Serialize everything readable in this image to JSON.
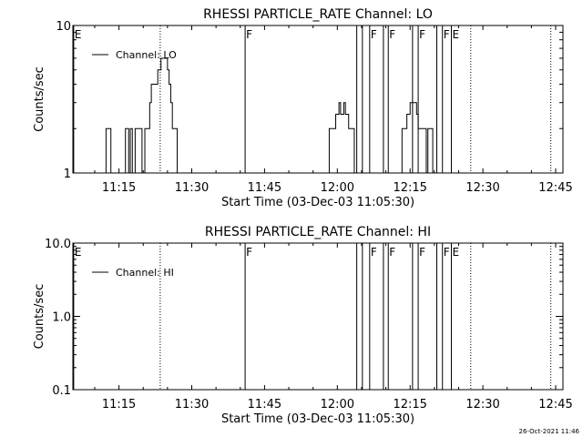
{
  "chart_data": [
    {
      "type": "line",
      "title": "RHESSI PARTICLE_RATE Channel: LO",
      "xlabel": "Start Time (03-Dec-03 11:05:30)",
      "ylabel": "Counts/sec",
      "y_scale": "log",
      "xlim": [
        "11:05:30",
        "12:46:30"
      ],
      "ylim": [
        1,
        10
      ],
      "x_ticks": [
        "11:15",
        "11:30",
        "11:45",
        "12:00",
        "12:15",
        "12:30",
        "12:45"
      ],
      "y_ticks": [
        "1",
        "10"
      ],
      "legend": {
        "position": "top-left",
        "entries": [
          "Channel: LO"
        ]
      },
      "series": [
        {
          "name": "Channel: LO",
          "x": [
            "11:12:00",
            "11:12:20",
            "11:12:30",
            "11:12:45",
            "11:13:00",
            "11:13:20",
            "11:16:00",
            "11:16:20",
            "11:16:30",
            "11:16:45",
            "11:17:00",
            "11:17:20",
            "11:17:30",
            "11:17:45",
            "11:18:00",
            "11:18:20",
            "11:19:00",
            "11:19:20",
            "11:19:30",
            "11:19:45",
            "11:20:00",
            "11:20:20",
            "11:21:00",
            "11:21:20",
            "11:21:40",
            "11:22:00",
            "11:22:30",
            "11:23:00",
            "11:23:20",
            "11:23:40",
            "11:24:00",
            "11:24:30",
            "11:25:00",
            "11:25:20",
            "11:25:40",
            "11:26:00",
            "11:26:30",
            "11:27:00",
            "11:27:20",
            "11:27:40",
            "11:28:00",
            "11:28:30",
            "11:29:00",
            "11:58:00",
            "11:58:20",
            "11:58:40",
            "11:59:00",
            "11:59:20",
            "11:59:40",
            "12:00:00",
            "12:00:20",
            "12:00:40",
            "12:01:00",
            "12:01:20",
            "12:01:40",
            "12:02:00",
            "12:02:20",
            "12:02:40",
            "12:03:00",
            "12:03:30",
            "12:04:00",
            "12:13:00",
            "12:13:20",
            "12:13:40",
            "12:14:00",
            "12:14:20",
            "12:14:40",
            "12:15:00",
            "12:15:30",
            "12:16:00",
            "12:16:20",
            "12:16:40",
            "12:17:00",
            "12:17:30",
            "12:18:00",
            "12:18:20",
            "12:18:40",
            "12:19:00",
            "12:19:20",
            "12:19:40"
          ],
          "y": [
            1,
            2,
            2,
            2,
            2,
            1,
            1,
            2,
            2,
            2,
            1,
            2,
            2,
            1,
            1,
            2,
            2,
            2,
            2,
            1,
            1,
            2,
            2,
            3,
            4,
            4,
            4,
            5,
            5,
            6,
            6,
            6,
            5,
            4,
            3,
            2,
            2,
            1,
            1,
            1,
            1,
            1,
            1,
            1,
            2,
            2,
            2,
            2,
            2.5,
            2.5,
            3,
            2.5,
            2.5,
            3,
            2.5,
            2.5,
            2,
            2,
            2,
            1,
            1,
            1,
            2,
            2,
            2,
            2.5,
            2.5,
            3,
            3,
            3,
            2.5,
            2,
            2,
            2,
            2,
            1,
            2,
            2,
            2,
            1
          ]
        }
      ],
      "vertical_lines": {
        "dotted": [
          "11:23:30",
          "12:27:30",
          "12:44:00"
        ],
        "solid_marked": [
          {
            "time": "11:05:40",
            "label": "E"
          },
          {
            "time": "11:41:00",
            "label": "F"
          },
          {
            "time": "12:05:10",
            "label": ""
          },
          {
            "time": "12:06:40",
            "label": "F"
          },
          {
            "time": "12:10:30",
            "label": "F"
          },
          {
            "time": "12:16:40",
            "label": "F"
          },
          {
            "time": "12:21:40",
            "label": "F"
          },
          {
            "time": "12:23:30",
            "label": "E"
          }
        ],
        "solid_unlabeled": [
          "12:04:00",
          "12:09:30",
          "12:15:30",
          "12:20:30"
        ]
      }
    },
    {
      "type": "line",
      "title": "RHESSI PARTICLE_RATE Channel: HI",
      "xlabel": "Start Time (03-Dec-03 11:05:30)",
      "ylabel": "Counts/sec",
      "y_scale": "log",
      "xlim": [
        "11:05:30",
        "12:46:30"
      ],
      "ylim": [
        0.1,
        10.0
      ],
      "x_ticks": [
        "11:15",
        "11:30",
        "11:45",
        "12:00",
        "12:15",
        "12:30",
        "12:45"
      ],
      "y_ticks": [
        "0.1",
        "1.0",
        "10.0"
      ],
      "legend": {
        "position": "top-left",
        "entries": [
          "Channel: HI"
        ]
      },
      "series": [
        {
          "name": "Channel: HI",
          "x": [],
          "y": []
        }
      ],
      "vertical_lines": {
        "dotted": [
          "11:23:30",
          "12:27:30",
          "12:44:00"
        ],
        "solid_marked": [
          {
            "time": "11:05:40",
            "label": "E"
          },
          {
            "time": "11:41:00",
            "label": "F"
          },
          {
            "time": "12:05:10",
            "label": ""
          },
          {
            "time": "12:06:40",
            "label": "F"
          },
          {
            "time": "12:10:30",
            "label": "F"
          },
          {
            "time": "12:16:40",
            "label": "F"
          },
          {
            "time": "12:21:40",
            "label": "F"
          },
          {
            "time": "12:23:30",
            "label": "E"
          }
        ],
        "solid_unlabeled": [
          "12:04:00",
          "12:09:30",
          "12:15:30",
          "12:20:30"
        ]
      }
    }
  ],
  "footer": {
    "timestamp": "26-Oct-2021 11:46"
  },
  "colors": {
    "background": "#ffffff",
    "foreground": "#000000"
  }
}
